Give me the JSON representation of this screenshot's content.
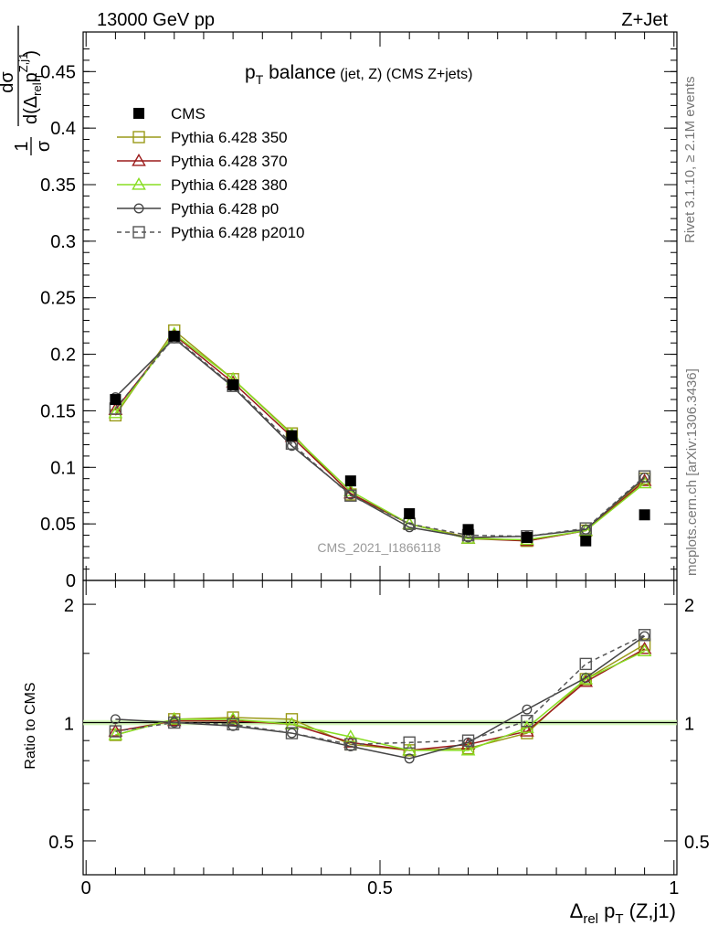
{
  "header": {
    "left": "13000 GeV pp",
    "right": "Z+Jet"
  },
  "side_labels": {
    "rivet": "Rivet 3.1.10, ≥ 2.1M events",
    "mcplots": "mcplots.cern.ch [arXiv:1306.3436]"
  },
  "watermark": "CMS_2021_I1866118",
  "title": {
    "main": "p",
    "main_sub": "T",
    "main_rest": " balance",
    "detail": " (jet, Z) (CMS Z+jets)"
  },
  "ylabel_main": {
    "num": "dσ",
    "frac_left": "1",
    "frac_left_den": "σ",
    "den": "d(Δ",
    "den_sub": "rel",
    "den_p": "p",
    "den_psup": "Z,j1",
    "den_psub": "T",
    "den_close": ")"
  },
  "ylabel_ratio": "Ratio to CMS",
  "xlabel": {
    "delta": "Δ",
    "sub": "rel",
    "p": " p",
    "psub": "T",
    "rest": " (Z,j1)"
  },
  "ticks": {
    "x_major": [
      {
        "v": 0,
        "label": "0"
      },
      {
        "v": 0.5,
        "label": "0.5"
      },
      {
        "v": 1,
        "label": "1"
      }
    ],
    "y_main": [
      {
        "v": 0,
        "label": "0"
      },
      {
        "v": 0.05,
        "label": "0.05"
      },
      {
        "v": 0.1,
        "label": "0.1"
      },
      {
        "v": 0.15,
        "label": "0.15"
      },
      {
        "v": 0.2,
        "label": "0.2"
      },
      {
        "v": 0.25,
        "label": "0.25"
      },
      {
        "v": 0.3,
        "label": "0.3"
      },
      {
        "v": 0.35,
        "label": "0.35"
      },
      {
        "v": 0.4,
        "label": "0.4"
      },
      {
        "v": 0.45,
        "label": "0.45"
      }
    ],
    "y_ratio": [
      {
        "v": 0.5,
        "label": "0.5"
      },
      {
        "v": 1,
        "label": "1"
      },
      {
        "v": 2,
        "label": "2"
      }
    ]
  },
  "chart_data": {
    "type": "line",
    "xlim": [
      -0.005,
      1.005
    ],
    "ylim_main": [
      0,
      0.485
    ],
    "ylim_ratio": [
      0.41,
      2.3
    ],
    "ratio_scale": "log",
    "x": [
      0.05,
      0.15,
      0.25,
      0.35,
      0.45,
      0.55,
      0.65,
      0.75,
      0.85,
      0.95
    ],
    "data": {
      "name": "CMS",
      "values": [
        0.16,
        0.216,
        0.173,
        0.128,
        0.088,
        0.059,
        0.045,
        0.038,
        0.035,
        0.058
      ],
      "color": "#000000",
      "marker": "square-filled"
    },
    "series": [
      {
        "name": "Pythia 6.428 350",
        "color": "#9a9a18",
        "marker": "square",
        "dash": "",
        "values": [
          0.146,
          0.221,
          0.178,
          0.13,
          0.076,
          0.05,
          0.038,
          0.035,
          0.044,
          0.09
        ],
        "ratio": [
          0.93,
          1.02,
          1.03,
          1.02,
          0.88,
          0.85,
          0.86,
          0.94,
          1.29,
          1.58
        ]
      },
      {
        "name": "Pythia 6.428 370",
        "color": "#9b1b1b",
        "marker": "triangle",
        "dash": "",
        "values": [
          0.151,
          0.217,
          0.175,
          0.127,
          0.077,
          0.05,
          0.037,
          0.035,
          0.044,
          0.088
        ],
        "ratio": [
          0.95,
          1.01,
          1.01,
          0.99,
          0.89,
          0.85,
          0.88,
          0.95,
          1.27,
          1.54
        ]
      },
      {
        "name": "Pythia 6.428 380",
        "color": "#88dd22",
        "marker": "triangle",
        "dash": "",
        "values": [
          0.148,
          0.218,
          0.178,
          0.129,
          0.079,
          0.05,
          0.037,
          0.036,
          0.044,
          0.086
        ],
        "ratio": [
          0.93,
          1.02,
          1.02,
          0.99,
          0.92,
          0.85,
          0.85,
          0.97,
          1.29,
          1.52
        ]
      },
      {
        "name": "Pythia 6.428 p0",
        "color": "#444444",
        "marker": "circle",
        "dash": "",
        "values": [
          0.162,
          0.214,
          0.171,
          0.119,
          0.076,
          0.047,
          0.038,
          0.039,
          0.045,
          0.091
        ],
        "ratio": [
          1.02,
          1.0,
          0.98,
          0.94,
          0.87,
          0.81,
          0.89,
          1.08,
          1.3,
          1.66
        ]
      },
      {
        "name": "Pythia 6.428 p2010",
        "color": "#555555",
        "marker": "square",
        "dash": "5,4",
        "values": [
          0.152,
          0.215,
          0.172,
          0.121,
          0.075,
          0.05,
          0.04,
          0.039,
          0.046,
          0.092
        ],
        "ratio": [
          0.95,
          1.0,
          0.99,
          0.94,
          0.88,
          0.89,
          0.9,
          1.01,
          1.41,
          1.67
        ]
      }
    ]
  }
}
